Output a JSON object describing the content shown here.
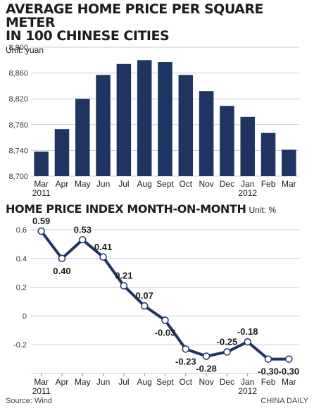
{
  "title_line1": "AVERAGE HOME PRICE PER SQUARE METER",
  "title_line2": "IN 100 CHINESE CITIES",
  "unit1": "Unit: yuan",
  "title2": "HOME PRICE INDEX MONTH-ON-MONTH",
  "unit2": "Unit: %",
  "source": "Source: Wind",
  "credit": "CHINA DAILY",
  "colors": {
    "bar": "#1f3461",
    "line": "#1f3461",
    "grid": "#c4ced9",
    "point_fill": "#ffffff"
  },
  "chart_data": [
    {
      "type": "bar",
      "categories": [
        "Mar",
        "Apr",
        "May",
        "Jun",
        "Jul",
        "Aug",
        "Sept",
        "Oct",
        "Nov",
        "Dec",
        "Jan",
        "Feb",
        "Mar"
      ],
      "year_labels": [
        "2011",
        "",
        "",
        "",
        "",
        "",
        "",
        "",
        "",
        "",
        "2012",
        "",
        ""
      ],
      "values": [
        8738,
        8773,
        8820,
        8857,
        8874,
        8880,
        8877,
        8857,
        8832,
        8809,
        8792,
        8767,
        8741
      ],
      "ylim": [
        8700,
        8900
      ],
      "yticks": [
        8700,
        8740,
        8780,
        8820,
        8860,
        8900
      ],
      "ytick_labels": [
        "8,700",
        "8,740",
        "8,780",
        "8,820",
        "8,860",
        "8,900"
      ],
      "grid": true
    },
    {
      "type": "line",
      "categories": [
        "Mar",
        "Apr",
        "May",
        "Jun",
        "Jul",
        "Aug",
        "Sept",
        "Oct",
        "Nov",
        "Dec",
        "Jan",
        "Feb",
        "Mar"
      ],
      "year_labels": [
        "2011",
        "",
        "",
        "",
        "",
        "",
        "",
        "",
        "",
        "",
        "2012",
        "",
        ""
      ],
      "values": [
        0.59,
        0.4,
        0.53,
        0.41,
        0.21,
        0.07,
        -0.03,
        -0.23,
        -0.28,
        -0.25,
        -0.18,
        -0.3,
        -0.3
      ],
      "value_labels": [
        "0.59",
        "0.40",
        "0.53",
        "0.41",
        "0.21",
        "0.07",
        "-0.03",
        "-0.23",
        "-0.28",
        "-0.25",
        "-0.18",
        "-0.30",
        "-0.30"
      ],
      "ylim": [
        -0.4,
        0.6
      ],
      "yticks": [
        0.6,
        0.4,
        0.2,
        0,
        -0.2
      ],
      "ytick_labels": [
        "0.6",
        "0.4",
        "0.2",
        "0",
        "-0.2"
      ],
      "grid": true
    }
  ]
}
